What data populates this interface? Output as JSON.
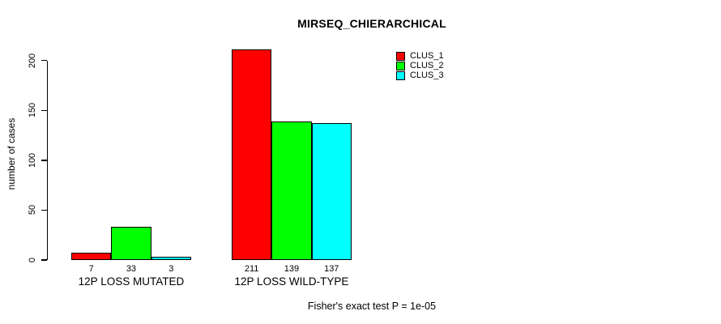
{
  "chart_data": {
    "type": "bar",
    "title": "MIRSEQ_CHIERARCHICAL",
    "xlabel": "",
    "ylabel": "number of cases",
    "categories": [
      "12P LOSS MUTATED",
      "12P LOSS WILD-TYPE"
    ],
    "series": [
      {
        "name": "CLUS_1",
        "color": "#ff0000",
        "values": [
          7,
          211
        ]
      },
      {
        "name": "CLUS_2",
        "color": "#00ff00",
        "values": [
          33,
          139
        ]
      },
      {
        "name": "CLUS_3",
        "color": "#00ffff",
        "values": [
          3,
          137
        ]
      }
    ],
    "bar_value_labels": [
      [
        "7",
        "33",
        "3"
      ],
      [
        "211",
        "139",
        "137"
      ]
    ],
    "yticks": [
      0,
      50,
      100,
      150,
      200
    ],
    "ylim": [
      0,
      211
    ],
    "grid": false,
    "legend_position": "top-right",
    "annotation": "Fisher's exact test P = 1e-05",
    "bar_border_color": "#000000",
    "background_color": "#ffffff",
    "text_color": "#000000"
  }
}
